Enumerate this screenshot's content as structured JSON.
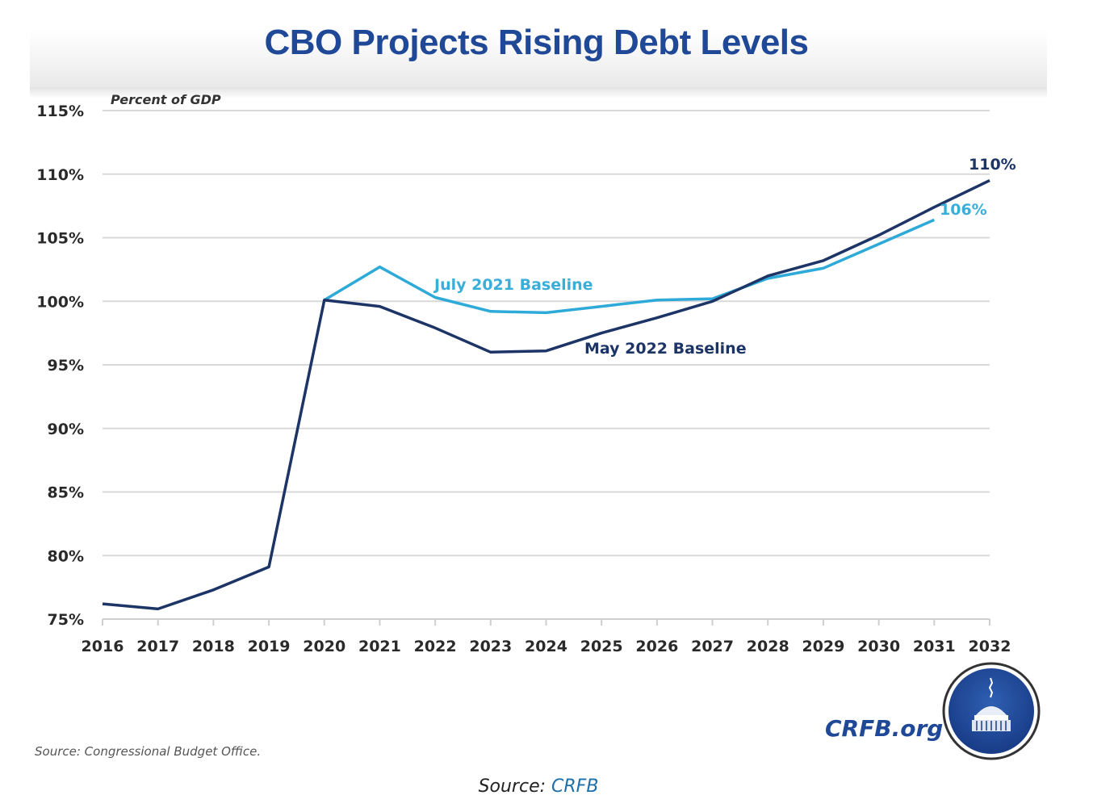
{
  "chart_data": {
    "type": "line",
    "title": "CBO Projects Rising Debt Levels",
    "ylabel": "Percent of GDP",
    "xlabel": "",
    "ylim": [
      75,
      115
    ],
    "yticks": [
      75,
      80,
      85,
      90,
      95,
      100,
      105,
      110,
      115
    ],
    "ytick_labels": [
      "75%",
      "80%",
      "85%",
      "90%",
      "95%",
      "100%",
      "105%",
      "110%",
      "115%"
    ],
    "x": [
      "2016",
      "2017",
      "2018",
      "2019",
      "2020",
      "2021",
      "2022",
      "2023",
      "2024",
      "2025",
      "2026",
      "2027",
      "2028",
      "2029",
      "2030",
      "2031",
      "2032"
    ],
    "grid": true,
    "legend": "inline labels",
    "series": [
      {
        "name": "May 2022 Baseline",
        "color": "#1c3466",
        "values": [
          76.2,
          75.8,
          77.3,
          79.1,
          100.1,
          99.6,
          97.9,
          96.0,
          96.1,
          97.5,
          98.7,
          100.0,
          102.0,
          103.2,
          105.2,
          107.4,
          109.5
        ],
        "end_label": "110%"
      },
      {
        "name": "July 2021 Baseline",
        "color": "#2eaad9",
        "values": [
          null,
          null,
          null,
          null,
          100.1,
          102.7,
          100.3,
          99.2,
          99.1,
          99.6,
          100.1,
          100.2,
          101.8,
          102.6,
          104.5,
          106.4,
          null
        ],
        "end_label": "106%"
      }
    ],
    "source_note": "Source: Congressional Budget Office."
  },
  "branding": {
    "site": "CRFB.org",
    "logo_icon": "capitol-dome-seal-icon"
  },
  "caption": {
    "prefix": "Source: ",
    "link_text": "CRFB"
  }
}
